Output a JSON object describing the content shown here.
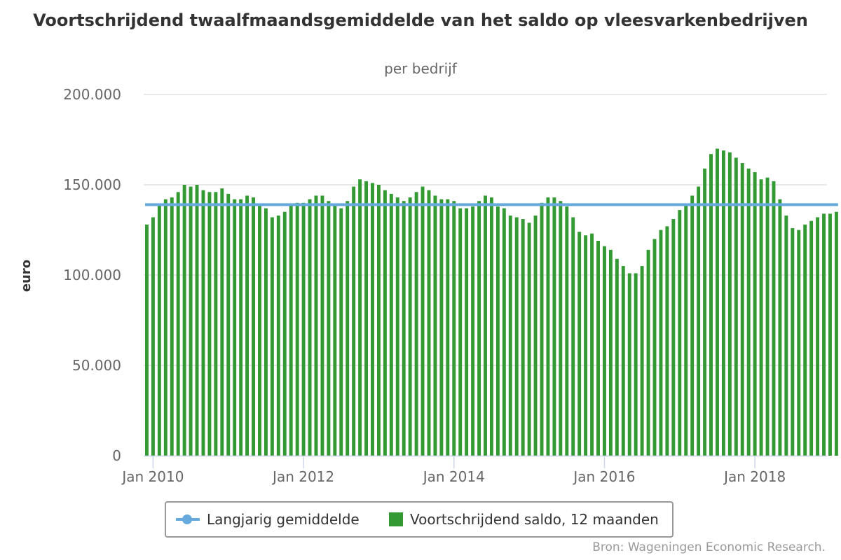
{
  "chart_data": {
    "type": "bar",
    "title": "Voortschrijdend twaalfmaandsgemiddelde van het saldo op vleesvarkenbedrijven",
    "subtitle": "per bedrijf",
    "ylabel": "euro",
    "xlabel": "",
    "ylim": [
      0,
      200000
    ],
    "yticks": [
      0,
      50000,
      100000,
      150000,
      200000
    ],
    "ytick_labels": [
      "0",
      "50.000",
      "100.000",
      "150.000",
      "200.000"
    ],
    "x_start": "2009-12",
    "x_end": "2018-12",
    "xtick_labels": [
      {
        "date": "2010-01",
        "label": "Jan 2010"
      },
      {
        "date": "2012-01",
        "label": "Jan 2012"
      },
      {
        "date": "2014-01",
        "label": "Jan 2014"
      },
      {
        "date": "2016-01",
        "label": "Jan 2016"
      },
      {
        "date": "2018-01",
        "label": "Jan 2018"
      }
    ],
    "grid": true,
    "legend_position": "bottom",
    "series": [
      {
        "name": "Langjarig gemiddelde",
        "type": "line",
        "color": "#66aadd",
        "value": 139000
      },
      {
        "name": "Voortschrijdend saldo, 12 maanden",
        "type": "bar",
        "color": "#339933",
        "values": [
          128000,
          132000,
          139000,
          142000,
          143000,
          146000,
          150000,
          149000,
          150000,
          147000,
          146000,
          146000,
          148000,
          145000,
          142000,
          142000,
          144000,
          143000,
          139000,
          137000,
          132000,
          133000,
          135000,
          139000,
          140000,
          140000,
          142000,
          144000,
          144000,
          141000,
          139000,
          137000,
          141000,
          149000,
          153000,
          152000,
          151000,
          150000,
          147000,
          145000,
          143000,
          141000,
          143000,
          146000,
          149000,
          147000,
          144000,
          142000,
          142000,
          141000,
          137000,
          137000,
          138000,
          141000,
          144000,
          143000,
          138000,
          137000,
          133000,
          132000,
          131000,
          129000,
          133000,
          140000,
          143000,
          143000,
          141000,
          138000,
          132000,
          124000,
          122000,
          123000,
          119000,
          116000,
          114000,
          109000,
          105000,
          101000,
          101000,
          105000,
          114000,
          120000,
          125000,
          127000,
          131000,
          136000,
          139000,
          144000,
          149000,
          159000,
          167000,
          170000,
          169000,
          168000,
          165000,
          162000,
          159000,
          157000,
          153000,
          154000,
          152000,
          142000,
          133000,
          126000,
          125000,
          128000,
          130000,
          132000,
          134000,
          134000,
          135000
        ]
      }
    ],
    "credits": "Bron: Wageningen Economic Research."
  }
}
